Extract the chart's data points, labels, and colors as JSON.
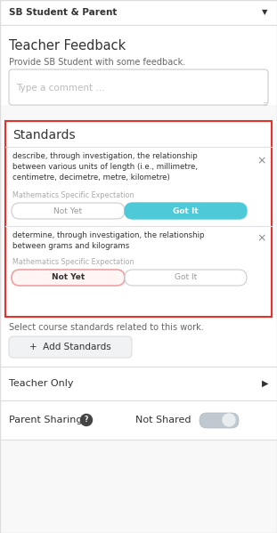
{
  "bg_color": "#f8f8f8",
  "white": "#ffffff",
  "border_gray": "#cccccc",
  "border_light": "#dddddd",
  "red_border": "#e8302a",
  "light_gray_line": "#e0e0e0",
  "text_dark": "#333333",
  "text_medium": "#666666",
  "text_light": "#999999",
  "cyan": "#4ec9d8",
  "cyan_border": "#4ec9d8",
  "pink_bg": "#fff5f5",
  "pink_border": "#f0a0a0",
  "header_bg": "#ffffff",
  "header_text": "SB Student & Parent",
  "teacher_feedback_title": "Teacher Feedback",
  "feedback_subtitle": "Provide SB Student with some feedback.",
  "comment_placeholder": "Type a comment ...",
  "standards_title": "Standards",
  "std1_text": "describe, through investigation, the relationship\nbetween various units of length (i.e., millimetre,\ncentimetre, decimetre, metre, kilometre)",
  "std1_category": "Mathematics Specific Expectation",
  "std1_btn1": "Not Yet",
  "std1_btn2": "Got It",
  "std2_text": "determine, through investigation, the relationship\nbetween grams and kilograms",
  "std2_category": "Mathematics Specific Expectation",
  "std2_btn1": "Not Yet",
  "std2_btn2": "Got It",
  "select_text": "Select course standards related to this work.",
  "add_btn_text": "+  Add Standards",
  "teacher_only_text": "Teacher Only",
  "parent_sharing_text": "Parent Sharing",
  "not_shared_text": "Not Shared"
}
